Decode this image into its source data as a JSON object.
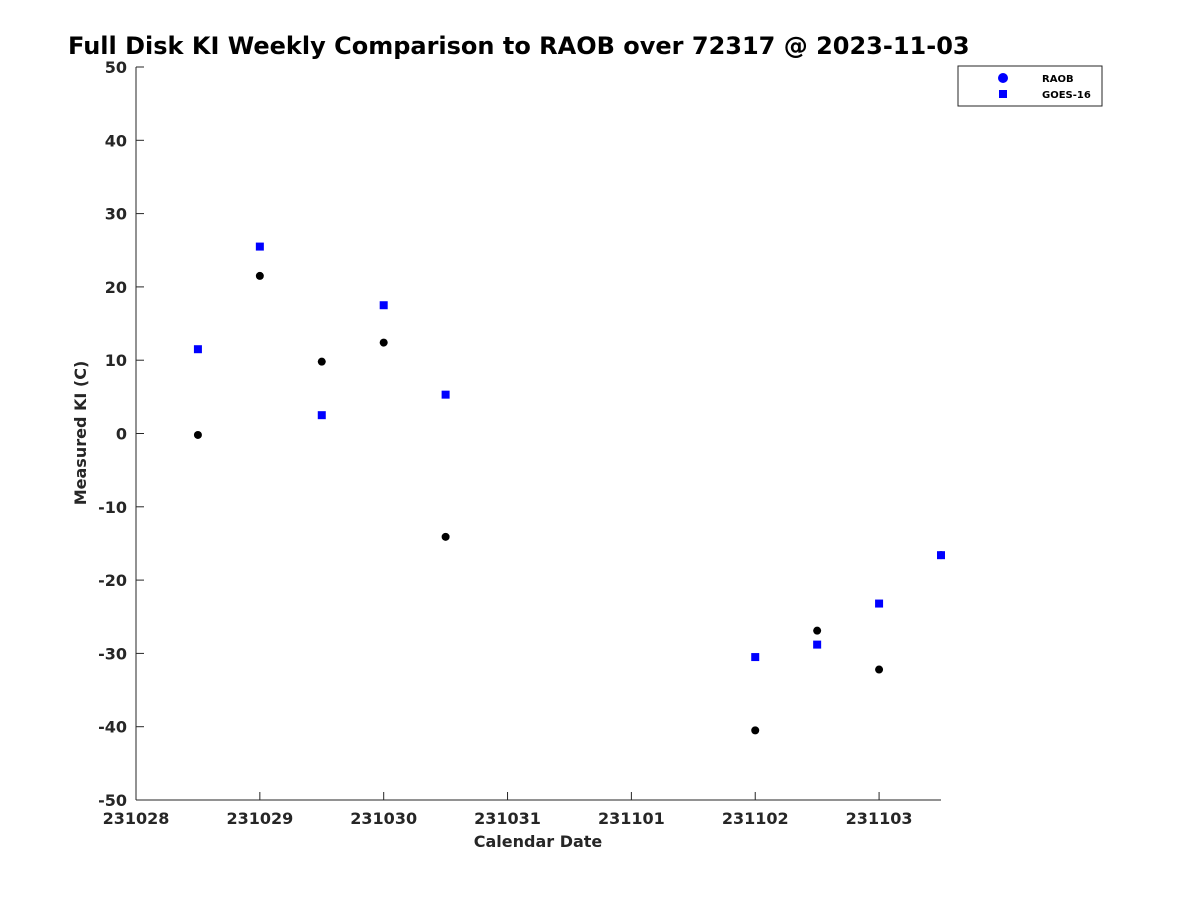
{
  "chart_data": {
    "type": "scatter",
    "title": "Full Disk KI Weekly Comparison to RAOB over 72317 @ 2023-11-03",
    "xlabel": "Calendar Date",
    "ylabel": "Measured KI (C)",
    "xlim": [
      "2023-10-28",
      "2023-11-03T12:00"
    ],
    "ylim": [
      -50,
      50
    ],
    "x_ticks": [
      "231028",
      "231029",
      "231030",
      "231031",
      "231101",
      "231102",
      "231103"
    ],
    "y_ticks": [
      "50",
      "40",
      "30",
      "20",
      "10",
      "0",
      "-10",
      "-20",
      "-30",
      "-40",
      "-50"
    ],
    "grid": false,
    "legend_position": "top-right",
    "series": [
      {
        "name": "RAOB",
        "marker": "circle",
        "color": "#000000",
        "legend_color": "#0000ff",
        "points": [
          {
            "x": "2023-10-28T12:00",
            "y": -0.2
          },
          {
            "x": "2023-10-29T00:00",
            "y": 21.5
          },
          {
            "x": "2023-10-29T12:00",
            "y": 9.8
          },
          {
            "x": "2023-10-30T00:00",
            "y": 12.4
          },
          {
            "x": "2023-10-30T12:00",
            "y": -14.1
          },
          {
            "x": "2023-11-02T00:00",
            "y": -40.5
          },
          {
            "x": "2023-11-02T12:00",
            "y": -26.9
          },
          {
            "x": "2023-11-03T00:00",
            "y": -32.2
          },
          {
            "x": "2023-11-03T12:00",
            "y": -16.6
          }
        ]
      },
      {
        "name": "GOES-16",
        "marker": "square",
        "color": "#0000ff",
        "legend_color": "#0000ff",
        "points": [
          {
            "x": "2023-10-28T12:00",
            "y": 11.5
          },
          {
            "x": "2023-10-29T00:00",
            "y": 25.5
          },
          {
            "x": "2023-10-29T12:00",
            "y": 2.5
          },
          {
            "x": "2023-10-30T00:00",
            "y": 17.5
          },
          {
            "x": "2023-10-30T12:00",
            "y": 5.3
          },
          {
            "x": "2023-11-02T00:00",
            "y": -30.5
          },
          {
            "x": "2023-11-02T12:00",
            "y": -28.8
          },
          {
            "x": "2023-11-03T00:00",
            "y": -23.2
          },
          {
            "x": "2023-11-03T12:00",
            "y": -16.6
          }
        ]
      }
    ]
  }
}
